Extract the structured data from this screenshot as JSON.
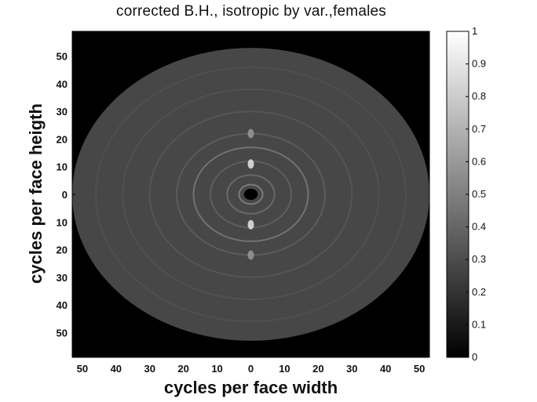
{
  "chart_data": {
    "type": "heatmap",
    "title": "corrected B.H., isotropic by var.,females",
    "xlabel": "cycles per face width",
    "ylabel": "cycles per face heigth",
    "x_ticks": [
      {
        "label": "50",
        "value": -50
      },
      {
        "label": "40",
        "value": -40
      },
      {
        "label": "30",
        "value": -30
      },
      {
        "label": "20",
        "value": -20
      },
      {
        "label": "10",
        "value": -10
      },
      {
        "label": "0",
        "value": 0
      },
      {
        "label": "10",
        "value": 10
      },
      {
        "label": "20",
        "value": 20
      },
      {
        "label": "30",
        "value": 30
      },
      {
        "label": "40",
        "value": 40
      },
      {
        "label": "50",
        "value": 50
      }
    ],
    "y_ticks": [
      {
        "label": "50",
        "value": 50
      },
      {
        "label": "40",
        "value": 40
      },
      {
        "label": "30",
        "value": 30
      },
      {
        "label": "20",
        "value": 20
      },
      {
        "label": "10",
        "value": 10
      },
      {
        "label": "0",
        "value": 0
      },
      {
        "label": "10",
        "value": -10
      },
      {
        "label": "20",
        "value": -20
      },
      {
        "label": "30",
        "value": -30
      },
      {
        "label": "40",
        "value": -40
      },
      {
        "label": "50",
        "value": -50
      }
    ],
    "xlim": [
      -53,
      53
    ],
    "ylim": [
      -59,
      59
    ],
    "disk_radius": 53,
    "colormap": "gray",
    "colorbar": {
      "range": [
        0,
        1
      ],
      "ticks": [
        "0",
        "0.1",
        "0.2",
        "0.3",
        "0.4",
        "0.5",
        "0.6",
        "0.7",
        "0.8",
        "0.9",
        "1"
      ]
    },
    "features": [
      {
        "shape": "disk",
        "radius": 53,
        "value": 0.28
      },
      {
        "shape": "center-hole",
        "radius": 2,
        "value": 0.0
      },
      {
        "shape": "ring",
        "radius": 3.5,
        "value": 0.55
      },
      {
        "shape": "ring",
        "radius": 7,
        "value": 0.45
      },
      {
        "shape": "ring",
        "radius": 12,
        "value": 0.4
      },
      {
        "shape": "ring",
        "radius": 17,
        "value": 0.5
      },
      {
        "shape": "ring",
        "radius": 22,
        "value": 0.38
      },
      {
        "shape": "ring",
        "radius": 30,
        "value": 0.35
      },
      {
        "shape": "ring",
        "radius": 38,
        "value": 0.33
      },
      {
        "shape": "ring",
        "radius": 46,
        "value": 0.32
      },
      {
        "shape": "spot",
        "x": 0,
        "y": 11,
        "value": 0.9
      },
      {
        "shape": "spot",
        "x": 0,
        "y": -11,
        "value": 0.9
      },
      {
        "shape": "spot",
        "x": 0,
        "y": 22,
        "value": 0.6
      },
      {
        "shape": "spot",
        "x": 0,
        "y": -22,
        "value": 0.6
      }
    ],
    "colors": {
      "background": "#000000",
      "axis": "#000000",
      "page": "#ffffff"
    }
  }
}
